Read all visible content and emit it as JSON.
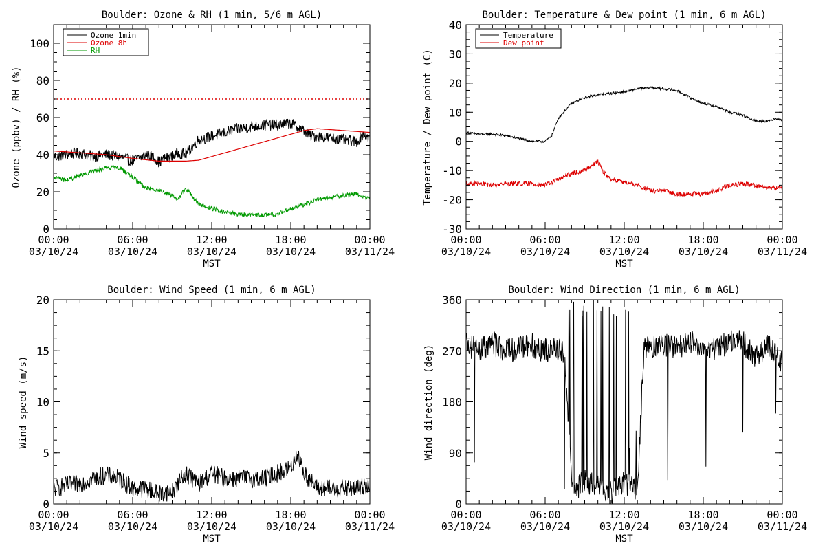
{
  "chart_data": [
    {
      "type": "line",
      "title": "Boulder: Ozone & RH (1 min, 5/6 m AGL)",
      "xlabel": "MST",
      "ylabel": "Ozone (ppbv) / RH (%)",
      "x_ticks": [
        "00:00",
        "06:00",
        "12:00",
        "18:00",
        "00:00"
      ],
      "x_dates": [
        "03/10/24",
        "03/10/24",
        "03/10/24",
        "03/10/24",
        "03/11/24"
      ],
      "xlim": [
        0,
        24
      ],
      "ylim": [
        0,
        110
      ],
      "yticks": [
        0,
        20,
        40,
        60,
        80,
        100
      ],
      "legend_position": "top-left",
      "reference_line": {
        "y": 70,
        "color": "#dd0000",
        "style": "dotted"
      },
      "series": [
        {
          "name": "Ozone 1min",
          "color": "#000000",
          "noise": 3,
          "x": [
            0,
            1,
            2,
            3,
            4,
            5,
            5.7,
            6,
            6.5,
            7,
            7.5,
            8,
            8.5,
            9,
            9.5,
            10,
            10.5,
            11,
            12,
            13,
            14,
            15,
            16,
            17,
            18,
            18.5,
            19,
            19.5,
            20,
            21,
            22,
            23,
            23.5,
            24
          ],
          "y": [
            39,
            40,
            41,
            39,
            40,
            39,
            37,
            37,
            38,
            40,
            39,
            36,
            38,
            39,
            41,
            40,
            44,
            48,
            50,
            52,
            54,
            55,
            56,
            56,
            57,
            55,
            53,
            50,
            50,
            49,
            48,
            47,
            51,
            49
          ]
        },
        {
          "name": "Ozone 8h",
          "color": "#dd0000",
          "noise": 0,
          "x": [
            0,
            2,
            4,
            6,
            8,
            10,
            11,
            12,
            14,
            16,
            18,
            19,
            20,
            22,
            24
          ],
          "y": [
            42,
            41,
            40,
            38,
            36.5,
            36.5,
            37,
            39,
            43,
            47,
            51,
            53,
            54,
            53,
            52
          ]
        },
        {
          "name": "RH",
          "color": "#009900",
          "noise": 1.2,
          "x": [
            0,
            1,
            2,
            3,
            4,
            5,
            6,
            7,
            8,
            9,
            9.5,
            10,
            10.5,
            11,
            12,
            13,
            14,
            15,
            16,
            17,
            18,
            19,
            20,
            21,
            22,
            23,
            24
          ],
          "y": [
            28,
            26,
            29,
            31,
            33,
            33,
            28,
            22,
            21,
            18,
            16,
            22,
            18,
            13,
            11,
            9,
            8,
            7.5,
            7.5,
            8,
            11,
            13,
            16,
            17,
            18,
            19,
            16
          ]
        }
      ]
    },
    {
      "type": "line",
      "title": "Boulder: Temperature & Dew point (1 min, 6 m AGL)",
      "xlabel": "MST",
      "ylabel": "Temperature / Dew point (C)",
      "x_ticks": [
        "00:00",
        "06:00",
        "12:00",
        "18:00",
        "00:00"
      ],
      "x_dates": [
        "03/10/24",
        "03/10/24",
        "03/10/24",
        "03/10/24",
        "03/11/24"
      ],
      "xlim": [
        0,
        24
      ],
      "ylim": [
        -30,
        40
      ],
      "yticks": [
        -30,
        -20,
        -10,
        0,
        10,
        20,
        30,
        40
      ],
      "legend_position": "top-left",
      "series": [
        {
          "name": "Temperature",
          "color": "#000000",
          "noise": 0.4,
          "x": [
            0,
            1,
            2,
            3,
            4,
            5,
            6,
            6.5,
            7,
            8,
            9,
            10,
            11,
            12,
            13,
            14,
            15,
            16,
            17,
            18,
            19,
            20,
            21,
            22,
            23,
            23.5,
            24
          ],
          "y": [
            3,
            2.5,
            2.5,
            2,
            1,
            0,
            0,
            2,
            8,
            13,
            15,
            16,
            16.5,
            17,
            18,
            18.5,
            18,
            17.5,
            15,
            13,
            12,
            10,
            9,
            7,
            7,
            8,
            7
          ]
        },
        {
          "name": "Dew point",
          "color": "#dd0000",
          "noise": 0.8,
          "x": [
            0,
            1,
            2,
            3,
            4,
            5,
            6,
            7,
            8,
            9,
            9.5,
            10,
            10.5,
            11,
            12,
            13,
            14,
            15,
            16,
            17,
            18,
            19,
            20,
            21,
            22,
            23,
            24
          ],
          "y": [
            -14.5,
            -14.5,
            -15,
            -14.5,
            -14.5,
            -14.5,
            -15,
            -13,
            -11,
            -10,
            -8,
            -7,
            -11,
            -13,
            -14,
            -15,
            -17,
            -17,
            -18,
            -18,
            -18,
            -17,
            -15,
            -14.5,
            -15,
            -16,
            -16
          ]
        }
      ]
    },
    {
      "type": "line",
      "title": "Boulder: Wind Speed (1 min, 6 m AGL)",
      "xlabel": "MST",
      "ylabel": "Wind speed (m/s)",
      "x_ticks": [
        "00:00",
        "06:00",
        "12:00",
        "18:00",
        "00:00"
      ],
      "x_dates": [
        "03/10/24",
        "03/10/24",
        "03/10/24",
        "03/10/24",
        "03/11/24"
      ],
      "xlim": [
        0,
        24
      ],
      "ylim": [
        0,
        20
      ],
      "yticks": [
        0,
        5,
        10,
        15,
        20
      ],
      "series": [
        {
          "name": "Wind speed",
          "color": "#000000",
          "noise": 0.9,
          "x": [
            0,
            1,
            2,
            3,
            4,
            5,
            6,
            7,
            8,
            9,
            10,
            11,
            12,
            13,
            14,
            15,
            16,
            17,
            18,
            18.5,
            19,
            20,
            21,
            22,
            23,
            24
          ],
          "y": [
            1.5,
            1.8,
            2,
            2.5,
            2.8,
            2.5,
            1.5,
            1.5,
            1,
            1.2,
            3,
            2,
            3,
            2.5,
            2.5,
            2.5,
            2.5,
            3,
            3.5,
            5,
            3,
            1.5,
            1.5,
            1.5,
            1.5,
            2
          ]
        }
      ]
    },
    {
      "type": "line",
      "title": "Boulder: Wind Direction (1 min, 6 m AGL)",
      "xlabel": "MST",
      "ylabel": "Wind direction (deg)",
      "x_ticks": [
        "00:00",
        "06:00",
        "12:00",
        "18:00",
        "00:00"
      ],
      "x_dates": [
        "03/10/24",
        "03/10/24",
        "03/10/24",
        "03/10/24",
        "03/11/24"
      ],
      "xlim": [
        0,
        24
      ],
      "ylim": [
        0,
        360
      ],
      "yticks": [
        0,
        90,
        180,
        270,
        360
      ],
      "series": [
        {
          "name": "Wind direction",
          "color": "#000000",
          "noise": 22,
          "x": [
            0,
            1,
            2,
            3,
            4,
            5,
            6,
            7,
            7.5,
            8,
            8.5,
            9,
            10,
            11,
            12,
            13,
            13.5,
            14,
            15,
            16,
            17,
            18,
            19,
            20,
            21,
            22,
            23,
            24
          ],
          "y": [
            280,
            270,
            285,
            270,
            275,
            280,
            270,
            275,
            260,
            40,
            30,
            40,
            30,
            20,
            40,
            20,
            280,
            275,
            280,
            275,
            285,
            280,
            270,
            290,
            285,
            260,
            280,
            250
          ],
          "wrap_zone": [
            7.3,
            13.3
          ]
        }
      ]
    }
  ]
}
